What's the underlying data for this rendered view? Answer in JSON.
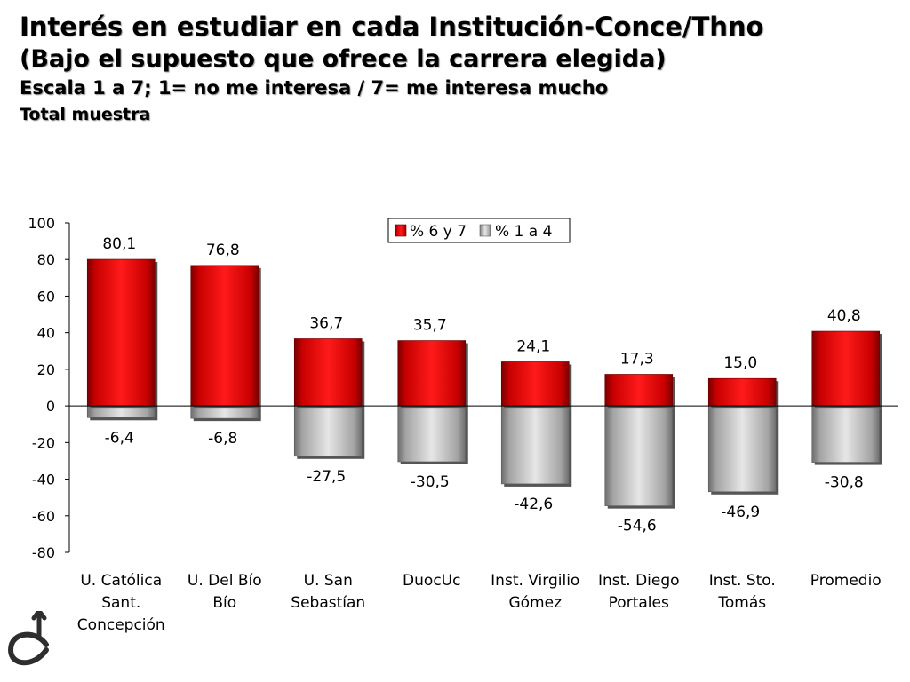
{
  "header": {
    "title": "Interés en estudiar en cada Institución-Conce/Thno",
    "subtitle": "(Bajo el supuesto que ofrece la carrera  elegida)",
    "scale_note": "Escala 1 a 7; 1= no me interesa / 7= me interesa mucho",
    "sample_note": "Total muestra"
  },
  "chart_data": {
    "type": "bar",
    "categories": [
      [
        "U. Católica",
        "Sant.",
        "Concepción"
      ],
      [
        "U. Del Bío",
        "Bío"
      ],
      [
        "U. San",
        "Sebastían"
      ],
      [
        "DuocUc"
      ],
      [
        "Inst. Virgilio",
        "Gómez"
      ],
      [
        "Inst. Diego",
        "Portales"
      ],
      [
        "Inst. Sto.",
        "Tomás"
      ],
      [
        "Promedio"
      ]
    ],
    "series": [
      {
        "name": "% 6 y 7",
        "values": [
          80.1,
          76.8,
          36.7,
          35.7,
          24.1,
          17.3,
          15.0,
          40.8
        ],
        "labels": [
          "80,1",
          "76,8",
          "36,7",
          "35,7",
          "24,1",
          "17,3",
          "15,0",
          "40,8"
        ],
        "color": "#dd0000"
      },
      {
        "name": "% 1 a 4",
        "values": [
          -6.4,
          -6.8,
          -27.5,
          -30.5,
          -42.6,
          -54.6,
          -46.9,
          -30.8
        ],
        "labels": [
          "-6,4",
          "-6,8",
          "-27,5",
          "-30,5",
          "-42,6",
          "-54,6",
          "-46,9",
          "-30,8"
        ],
        "color": "#b8b8b8"
      }
    ],
    "ylim": [
      -80,
      100
    ],
    "yticks": [
      100,
      80,
      60,
      40,
      20,
      0,
      -20,
      -40,
      -60,
      -80
    ],
    "stacked": true,
    "legend_position": "top-right",
    "grid": false
  }
}
